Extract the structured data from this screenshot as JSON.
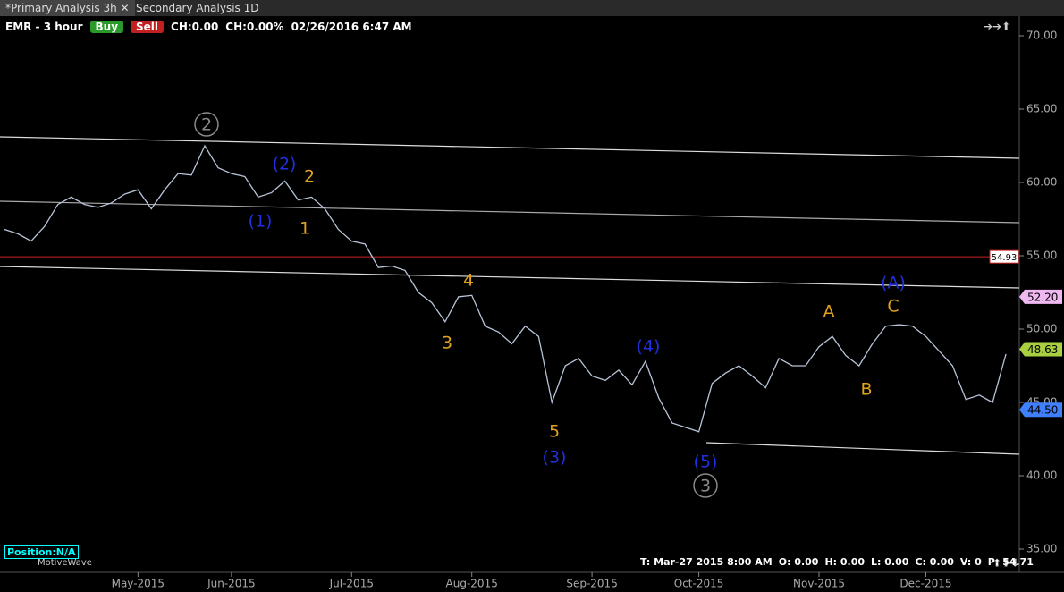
{
  "ui": {
    "tabs": [
      "*Primary Analysis 3h",
      "Secondary Analysis 1D"
    ],
    "symbol": "EMR - 3 hour",
    "buy": "Buy",
    "sell": "Sell",
    "change": "CH:0.00",
    "change_pct": "CH:0.00%",
    "timestamp": "02/26/2016 6:47 AM",
    "position": "Position:N/A",
    "brand": "MotiveWave",
    "status": [
      "T: Mar-27 2015 8:00 AM",
      "O: 0.00",
      "H: 0.00",
      "L: 0.00",
      "C: 0.00",
      "V: 0",
      "P: 54.71"
    ]
  },
  "chart_data": {
    "type": "line",
    "categories": [
      null,
      null,
      null,
      null,
      null,
      null,
      null,
      null,
      null,
      null,
      "May-2015",
      null,
      null,
      null,
      null,
      null,
      null,
      "Jun-2015",
      null,
      null,
      null,
      null,
      null,
      null,
      null,
      null,
      "Jul-2015",
      null,
      null,
      null,
      null,
      null,
      null,
      null,
      null,
      "Aug-2015",
      null,
      null,
      null,
      null,
      null,
      null,
      null,
      null,
      "Sep-2015",
      null,
      null,
      null,
      null,
      null,
      null,
      null,
      "Oct-2015",
      null,
      null,
      null,
      null,
      null,
      null,
      null,
      null,
      "Nov-2015",
      null,
      null,
      null,
      null,
      null,
      null,
      null,
      "Dec-2015",
      null,
      null,
      null,
      null,
      null,
      null
    ],
    "series": [
      {
        "color": "#b8c4d8",
        "values": [
          56.8,
          56.5,
          56.0,
          57.0,
          58.5,
          59.0,
          58.5,
          58.3,
          58.6,
          59.2,
          59.5,
          58.2,
          59.5,
          60.6,
          60.5,
          62.5,
          61.0,
          60.6,
          60.4,
          59.0,
          59.3,
          60.1,
          58.8,
          59.0,
          58.2,
          56.8,
          56.0,
          55.8,
          54.2,
          54.3,
          54.0,
          52.5,
          51.8,
          50.5,
          52.2,
          52.3,
          50.2,
          49.8,
          49.0,
          50.2,
          49.5,
          45.0,
          47.5,
          48.0,
          46.8,
          46.5,
          47.2,
          46.2,
          47.8,
          45.3,
          43.6,
          43.3,
          43.0,
          46.3,
          47.0,
          47.5,
          46.8,
          46.0,
          48.0,
          47.5,
          47.5,
          48.8,
          49.5,
          48.2,
          47.5,
          49.0,
          50.2,
          50.3,
          50.2,
          49.5,
          48.5,
          47.5,
          45.2,
          45.5,
          45.0,
          48.3
        ]
      }
    ],
    "ylim": [
      35,
      70
    ],
    "yticks": [
      {
        "value": 35,
        "label": "35.00"
      },
      {
        "value": 40,
        "label": "40.00"
      },
      {
        "value": 45,
        "label": "45.00"
      },
      {
        "value": 50,
        "label": "50.00"
      },
      {
        "value": 55,
        "label": "55.00"
      },
      {
        "value": 60,
        "label": "60.00"
      },
      {
        "value": 65,
        "label": "65.00"
      },
      {
        "value": 70,
        "label": "70.00"
      }
    ],
    "level": {
      "value": 54.93,
      "label": "54.93",
      "color": "#cc2222"
    },
    "price_tags": [
      {
        "value": 52.2,
        "label": "52.20",
        "color": "#f0b8f0"
      },
      {
        "value": 48.63,
        "label": "48.63",
        "color": "#a8d040"
      },
      {
        "value": 44.5,
        "label": "44.50",
        "color": "#4080ff"
      }
    ],
    "wave_labels": [
      {
        "text": "2",
        "color": "#888888",
        "circled": true
      },
      {
        "text": "(2)",
        "color": "#2030e0"
      },
      {
        "text": "2",
        "color": "#e0a020"
      },
      {
        "text": "(1)",
        "color": "#2030e0"
      },
      {
        "text": "1",
        "color": "#e0a020"
      },
      {
        "text": "4",
        "color": "#e0a020"
      },
      {
        "text": "3",
        "color": "#e0a020"
      },
      {
        "text": "5",
        "color": "#e0a020"
      },
      {
        "text": "(3)",
        "color": "#2030e0"
      },
      {
        "text": "(4)",
        "color": "#2030e0"
      },
      {
        "text": "(5)",
        "color": "#2030e0"
      },
      {
        "text": "3",
        "color": "#888888",
        "circled": true
      },
      {
        "text": "A",
        "color": "#e0a020"
      },
      {
        "text": "(A)",
        "color": "#2030e0"
      },
      {
        "text": "C",
        "color": "#e0a020"
      },
      {
        "text": "B",
        "color": "#e0a020"
      }
    ]
  }
}
